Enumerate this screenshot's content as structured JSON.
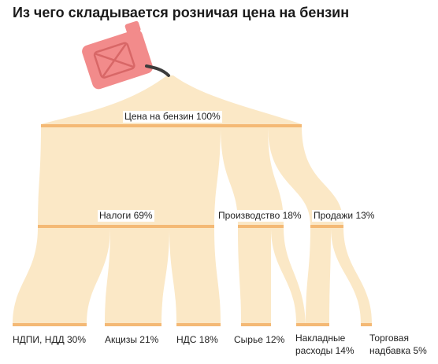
{
  "title": "Из чего складывается розничая цена на бензин",
  "colors": {
    "flow": "#fbe8c6",
    "bar": "#f4b975",
    "canister": "#f28b8b",
    "canister_dark": "#d86767",
    "nozzle": "#3c3c3c"
  },
  "icon": "fuel-canister-icon",
  "nodes": {
    "total": "Цена на бензин 100%",
    "taxes": "Налоги 69%",
    "production": "Производство 18%",
    "sales": "Продажи 13%",
    "ndpi": "НДПИ, НДД 30%",
    "excise": "Акцизы 21%",
    "vat": "НДС 18%",
    "raw": "Сырье 12%",
    "overhead_1": "Накладные",
    "overhead_2": "расходы 14%",
    "markup_1": "Торговая",
    "markup_2": "надбавка 5%"
  }
}
